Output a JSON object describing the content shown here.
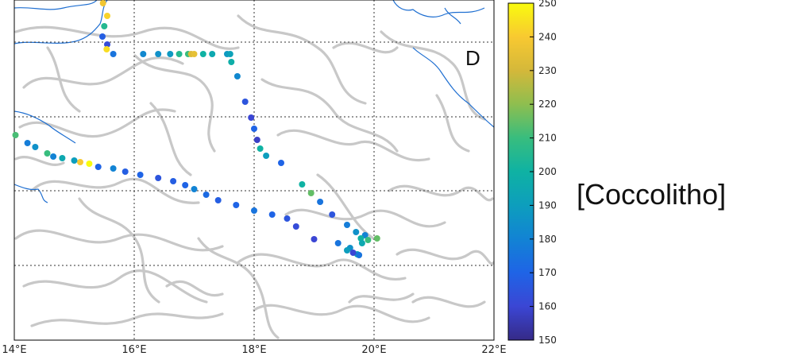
{
  "panel_label": "D",
  "colorbar": {
    "title": "[Coccolitho]",
    "min": 150,
    "max": 250,
    "ticks": [
      "150",
      "160",
      "170",
      "180",
      "190",
      "200",
      "210",
      "220",
      "230",
      "240",
      "250"
    ]
  },
  "axes": {
    "lon_ticks": [
      {
        "lon": 14,
        "label": "14°E"
      },
      {
        "lon": 16,
        "label": "16°E"
      },
      {
        "lon": 18,
        "label": "18°E"
      },
      {
        "lon": 20,
        "label": "20°E"
      },
      {
        "lon": 22,
        "label": "22°E"
      }
    ],
    "lon_range": [
      14,
      22
    ]
  },
  "colors": {
    "coastline": "#1f6fd1",
    "fronts": "#c8c8c8",
    "grid": "#333333"
  },
  "track": [
    {
      "lon": 15.48,
      "v": 238
    },
    {
      "lon": 15.55,
      "v": 242
    },
    {
      "lon": 15.5,
      "v": 205
    },
    {
      "lon": 15.47,
      "v": 168
    },
    {
      "lon": 15.55,
      "v": 162
    },
    {
      "lon": 15.54,
      "v": 244
    },
    {
      "lon": 15.65,
      "v": 175
    },
    {
      "lon": 16.15,
      "v": 182
    },
    {
      "lon": 16.4,
      "v": 185
    },
    {
      "lon": 16.6,
      "v": 188
    },
    {
      "lon": 16.75,
      "v": 205
    },
    {
      "lon": 16.9,
      "v": 210
    },
    {
      "lon": 16.95,
      "v": 232
    },
    {
      "lon": 17.0,
      "v": 235
    },
    {
      "lon": 17.15,
      "v": 200
    },
    {
      "lon": 17.3,
      "v": 195
    },
    {
      "lon": 17.55,
      "v": 188
    },
    {
      "lon": 17.6,
      "v": 192
    },
    {
      "lon": 17.62,
      "v": 198
    },
    {
      "lon": 17.72,
      "v": 182
    },
    {
      "lon": 17.85,
      "v": 165
    },
    {
      "lon": 17.95,
      "v": 160
    },
    {
      "lon": 18.0,
      "v": 170
    },
    {
      "lon": 18.05,
      "v": 158
    },
    {
      "lon": 18.1,
      "v": 200
    },
    {
      "lon": 18.2,
      "v": 190
    },
    {
      "lon": 18.45,
      "v": 170
    },
    {
      "lon": 18.8,
      "v": 200
    },
    {
      "lon": 18.95,
      "v": 215
    },
    {
      "lon": 19.1,
      "v": 175
    },
    {
      "lon": 19.3,
      "v": 165
    },
    {
      "lon": 19.55,
      "v": 178
    },
    {
      "lon": 19.7,
      "v": 185
    },
    {
      "lon": 19.85,
      "v": 180
    },
    {
      "lon": 19.78,
      "v": 200
    },
    {
      "lon": 19.9,
      "v": 210
    },
    {
      "lon": 20.05,
      "v": 215
    },
    {
      "lon": 19.8,
      "v": 195
    },
    {
      "lon": 19.6,
      "v": 185
    },
    {
      "lon": 19.72,
      "v": 195
    },
    {
      "lon": 19.75,
      "v": 175
    },
    {
      "lon": 19.65,
      "v": 160
    },
    {
      "lon": 19.55,
      "v": 190
    },
    {
      "lon": 19.4,
      "v": 175
    },
    {
      "lon": 19.0,
      "v": 160
    },
    {
      "lon": 18.7,
      "v": 162
    },
    {
      "lon": 18.55,
      "v": 165
    },
    {
      "lon": 18.3,
      "v": 170
    },
    {
      "lon": 18.0,
      "v": 175
    },
    {
      "lon": 17.7,
      "v": 170
    },
    {
      "lon": 17.4,
      "v": 168
    },
    {
      "lon": 17.2,
      "v": 172
    },
    {
      "lon": 17.0,
      "v": 180
    },
    {
      "lon": 16.85,
      "v": 170
    },
    {
      "lon": 16.65,
      "v": 168
    },
    {
      "lon": 16.4,
      "v": 165
    },
    {
      "lon": 16.1,
      "v": 170
    },
    {
      "lon": 15.85,
      "v": 168
    },
    {
      "lon": 15.65,
      "v": 180
    },
    {
      "lon": 15.4,
      "v": 170
    },
    {
      "lon": 15.25,
      "v": 250
    },
    {
      "lon": 15.1,
      "v": 240
    },
    {
      "lon": 15.0,
      "v": 190
    },
    {
      "lon": 14.8,
      "v": 195
    },
    {
      "lon": 14.65,
      "v": 180
    },
    {
      "lon": 14.55,
      "v": 210
    },
    {
      "lon": 14.35,
      "v": 185
    },
    {
      "lon": 14.22,
      "v": 178
    },
    {
      "lon": 14.02,
      "v": 212
    }
  ]
}
